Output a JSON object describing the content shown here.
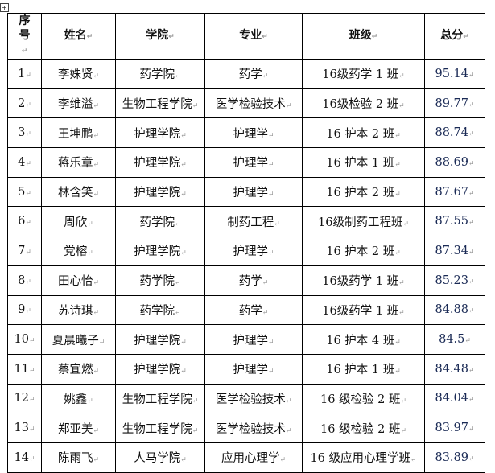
{
  "table": {
    "headers": [
      "序号",
      "姓名",
      "学院",
      "专业",
      "班级",
      "总分"
    ],
    "rows": [
      [
        "1",
        "李姝贤",
        "药学院",
        "药学",
        "16级药学 1 班",
        "95.14"
      ],
      [
        "2",
        "李维溢",
        "生物工程学院",
        "医学检验技术",
        "16级检验 2 班",
        "89.77"
      ],
      [
        "3",
        "王坤鹏",
        "护理学院",
        "护理学",
        "16 护本 2 班",
        "88.74"
      ],
      [
        "4",
        "蒋乐章",
        "护理学院",
        "护理学",
        "16 护本 1 班",
        "88.69"
      ],
      [
        "5",
        "林含笑",
        "护理学院",
        "护理学",
        "16 护本 2 班",
        "87.67"
      ],
      [
        "6",
        "周欣",
        "药学院",
        "制药工程",
        "16级制药工程班",
        "87.55"
      ],
      [
        "7",
        "党榕",
        "护理学院",
        "护理学",
        "16 护本 2 班",
        "87.34"
      ],
      [
        "8",
        "田心怡",
        "药学院",
        "药学",
        "16级药学 1 班",
        "85.23"
      ],
      [
        "9",
        "苏诗琪",
        "药学院",
        "药学",
        "16级药学 1 班",
        "84.88"
      ],
      [
        "10",
        "夏晨曦子",
        "护理学院",
        "护理学",
        "16 护本 4 班",
        "84.5"
      ],
      [
        "11",
        "蔡宜燃",
        "护理学院",
        "护理学",
        "16 护本 1 班",
        "84.48"
      ],
      [
        "12",
        "姚鑫",
        "生物工程学院",
        "医学检验技术",
        "16 级检验 2 班",
        "84.04"
      ],
      [
        "13",
        "郑亚美",
        "生物工程学院",
        "医学检验技术",
        "16 级检验 2 班",
        "83.97"
      ],
      [
        "14",
        "陈雨飞",
        "人马学院",
        "应用心理学",
        "16 级应用心理学班",
        "83.89"
      ]
    ]
  }
}
